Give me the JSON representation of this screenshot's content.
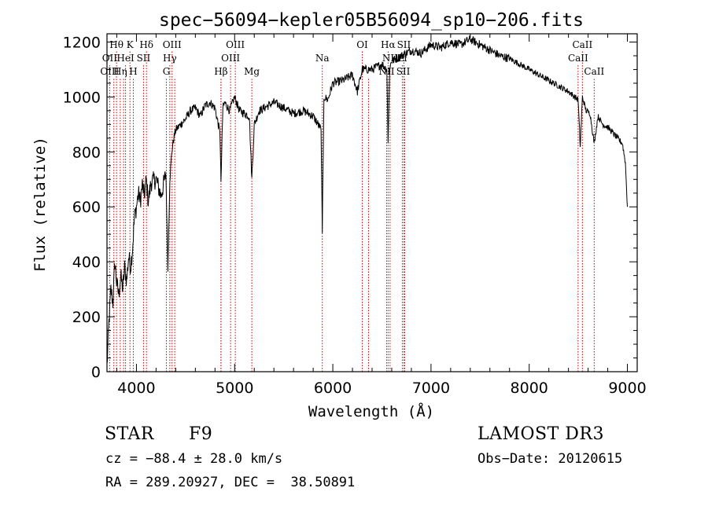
{
  "chart_data": {
    "type": "line",
    "title": "spec−56094−kepler05B56094_sp10−206.fits",
    "xlabel": "Wavelength (Å)",
    "ylabel": "Flux (relative)",
    "xlim": [
      3700,
      9100
    ],
    "ylim": [
      0,
      1230
    ],
    "xticks": [
      4000,
      5000,
      6000,
      7000,
      8000,
      9000
    ],
    "yticks": [
      0,
      200,
      400,
      600,
      800,
      1000,
      1200
    ],
    "grid": false,
    "series": [
      {
        "name": "spectrum",
        "x": [
          3700,
          3720,
          3740,
          3760,
          3780,
          3800,
          3820,
          3840,
          3860,
          3880,
          3900,
          3920,
          3940,
          3960,
          3980,
          4000,
          4020,
          4040,
          4060,
          4080,
          4100,
          4120,
          4150,
          4200,
          4250,
          4300,
          4320,
          4340,
          4360,
          4380,
          4400,
          4450,
          4500,
          4550,
          4600,
          4650,
          4700,
          4750,
          4800,
          4850,
          4861,
          4880,
          4900,
          4950,
          5000,
          5050,
          5100,
          5150,
          5175,
          5200,
          5250,
          5300,
          5400,
          5500,
          5600,
          5700,
          5800,
          5850,
          5880,
          5893,
          5910,
          5950,
          6000,
          6100,
          6200,
          6250,
          6300,
          6400,
          6500,
          6550,
          6563,
          6580,
          6600,
          6700,
          6800,
          6900,
          7000,
          7100,
          7200,
          7300,
          7400,
          7500,
          7600,
          7700,
          7800,
          7900,
          8000,
          8100,
          8200,
          8300,
          8400,
          8498,
          8520,
          8542,
          8580,
          8620,
          8662,
          8700,
          8750,
          8800,
          8850,
          8900,
          8950,
          8980,
          9000
        ],
        "values": [
          20,
          180,
          300,
          250,
          400,
          320,
          280,
          350,
          300,
          380,
          330,
          420,
          380,
          450,
          560,
          600,
          650,
          620,
          680,
          640,
          700,
          620,
          690,
          700,
          640,
          720,
          380,
          700,
          800,
          850,
          880,
          900,
          920,
          950,
          960,
          930,
          970,
          980,
          960,
          870,
          700,
          960,
          980,
          950,
          1000,
          950,
          940,
          930,
          700,
          900,
          950,
          960,
          980,
          960,
          940,
          950,
          930,
          900,
          880,
          520,
          1000,
          990,
          1050,
          1060,
          1080,
          1020,
          1100,
          1100,
          1120,
          1100,
          840,
          1110,
          1130,
          1150,
          1170,
          1160,
          1190,
          1180,
          1200,
          1190,
          1210,
          1190,
          1170,
          1150,
          1140,
          1120,
          1100,
          1080,
          1060,
          1040,
          1020,
          990,
          820,
          1000,
          950,
          940,
          830,
          930,
          900,
          890,
          870,
          850,
          830,
          760,
          600
        ]
      }
    ],
    "line_markers": [
      {
        "label": "Hθ",
        "x": 3797,
        "row": 1
      },
      {
        "label": "OII",
        "x": 3727,
        "row": 2
      },
      {
        "label": "OIII",
        "x": 3727,
        "row": 3
      },
      {
        "label": "Hη",
        "x": 3835,
        "row": 3
      },
      {
        "label": "K",
        "x": 3934,
        "row": 1
      },
      {
        "label": "HeI",
        "x": 3889,
        "row": 2
      },
      {
        "label": "H",
        "x": 3968,
        "row": 3
      },
      {
        "label": "Hδ",
        "x": 4102,
        "row": 1
      },
      {
        "label": "SII",
        "x": 4072,
        "row": 2
      },
      {
        "label": "OIII",
        "x": 4363,
        "row": 1
      },
      {
        "label": "Hγ",
        "x": 4340,
        "row": 2
      },
      {
        "label": "G",
        "x": 4305,
        "row": 3
      },
      {
        "label": "OIII",
        "x": 5007,
        "row": 1
      },
      {
        "label": "OIII",
        "x": 4959,
        "row": 2
      },
      {
        "label": "Hβ",
        "x": 4861,
        "row": 3
      },
      {
        "label": "Mg",
        "x": 5175,
        "row": 3
      },
      {
        "label": "Na",
        "x": 5893,
        "row": 2
      },
      {
        "label": "OI",
        "x": 6300,
        "row": 1
      },
      {
        "label": "Hα",
        "x": 6563,
        "row": 1
      },
      {
        "label": "SII",
        "x": 6724,
        "row": 1
      },
      {
        "label": "NII",
        "x": 6583,
        "row": 2
      },
      {
        "label": "Li",
        "x": 6708,
        "row": 2
      },
      {
        "label": "NII",
        "x": 6548,
        "row": 3
      },
      {
        "label": "SII",
        "x": 6717,
        "row": 3
      },
      {
        "label": "CaII",
        "x": 8542,
        "row": 1
      },
      {
        "label": "CaII",
        "x": 8498,
        "row": 2
      },
      {
        "label": "CaII",
        "x": 8662,
        "row": 3
      }
    ],
    "extra_marker_lines": [
      3770,
      3869,
      4390,
      4861,
      6364,
      6731
    ]
  },
  "footer": {
    "object_class": "STAR",
    "subclass": "F9",
    "survey": "LAMOST DR3",
    "redshift": "cz = −88.4 ± 28.0 km/s",
    "obs_date": "Obs−Date: 20120615",
    "coords": "RA = 289.20927, DEC =  38.50891"
  },
  "colors": {
    "spectrum": "#000000",
    "marker": "#cc0000",
    "axes": "#000000"
  }
}
